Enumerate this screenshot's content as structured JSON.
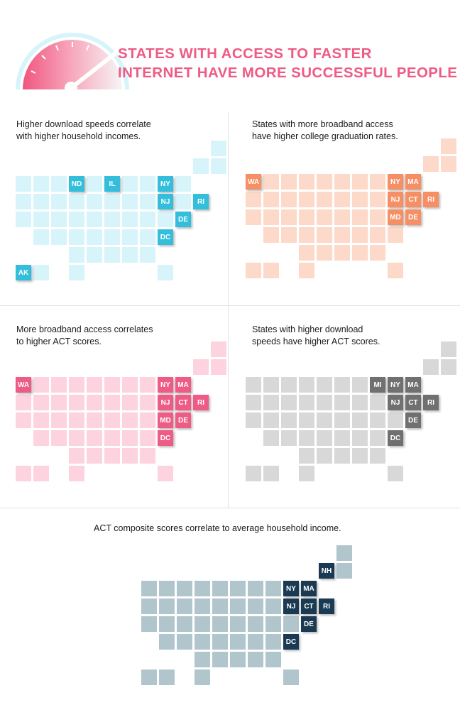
{
  "title": {
    "line1": "STATES WITH ACCESS TO FASTER",
    "line2": "INTERNET HAVE MORE SUCCESSFUL PEOPLE",
    "color": "#ee5b84"
  },
  "gauge_icon": "speedometer-gauge-icon",
  "panels": [
    {
      "id": "income-speed",
      "caption": [
        "Higher download speeds correlate",
        "with higher household incomes."
      ],
      "colors": {
        "base": "#d6f4fa",
        "highlight": "#33bfdc"
      },
      "highlighted": [
        "ND",
        "IL",
        "NY",
        "NJ",
        "RI",
        "DE",
        "DC",
        "AK"
      ]
    },
    {
      "id": "broadband-grad",
      "caption": [
        "States with more broadband access",
        "have higher college graduation rates."
      ],
      "colors": {
        "base": "#fdd9c9",
        "highlight": "#f68f64"
      },
      "highlighted": [
        "WA",
        "NY",
        "MA",
        "NJ",
        "CT",
        "RI",
        "MD",
        "DE"
      ]
    },
    {
      "id": "broadband-act",
      "caption": [
        "More broadband access correlates",
        "to higher ACT scores."
      ],
      "colors": {
        "base": "#fdd3df",
        "highlight": "#ee5b84"
      },
      "highlighted": [
        "WA",
        "NY",
        "MA",
        "NJ",
        "CT",
        "RI",
        "MD",
        "DE",
        "DC"
      ]
    },
    {
      "id": "speed-act",
      "caption": [
        "States with higher download",
        "speeds have higher ACT scores."
      ],
      "colors": {
        "base": "#d8d8d8",
        "highlight": "#707070"
      },
      "highlighted": [
        "MI",
        "NY",
        "MA",
        "NJ",
        "CT",
        "RI",
        "DE",
        "DC"
      ]
    },
    {
      "id": "act-income",
      "caption": [
        "ACT composite scores correlate to average household income."
      ],
      "colors": {
        "base": "#b1c5cd",
        "highlight": "#193a52"
      },
      "highlighted": [
        "NH",
        "NY",
        "MA",
        "NJ",
        "CT",
        "RI",
        "DE",
        "DC"
      ]
    }
  ]
}
